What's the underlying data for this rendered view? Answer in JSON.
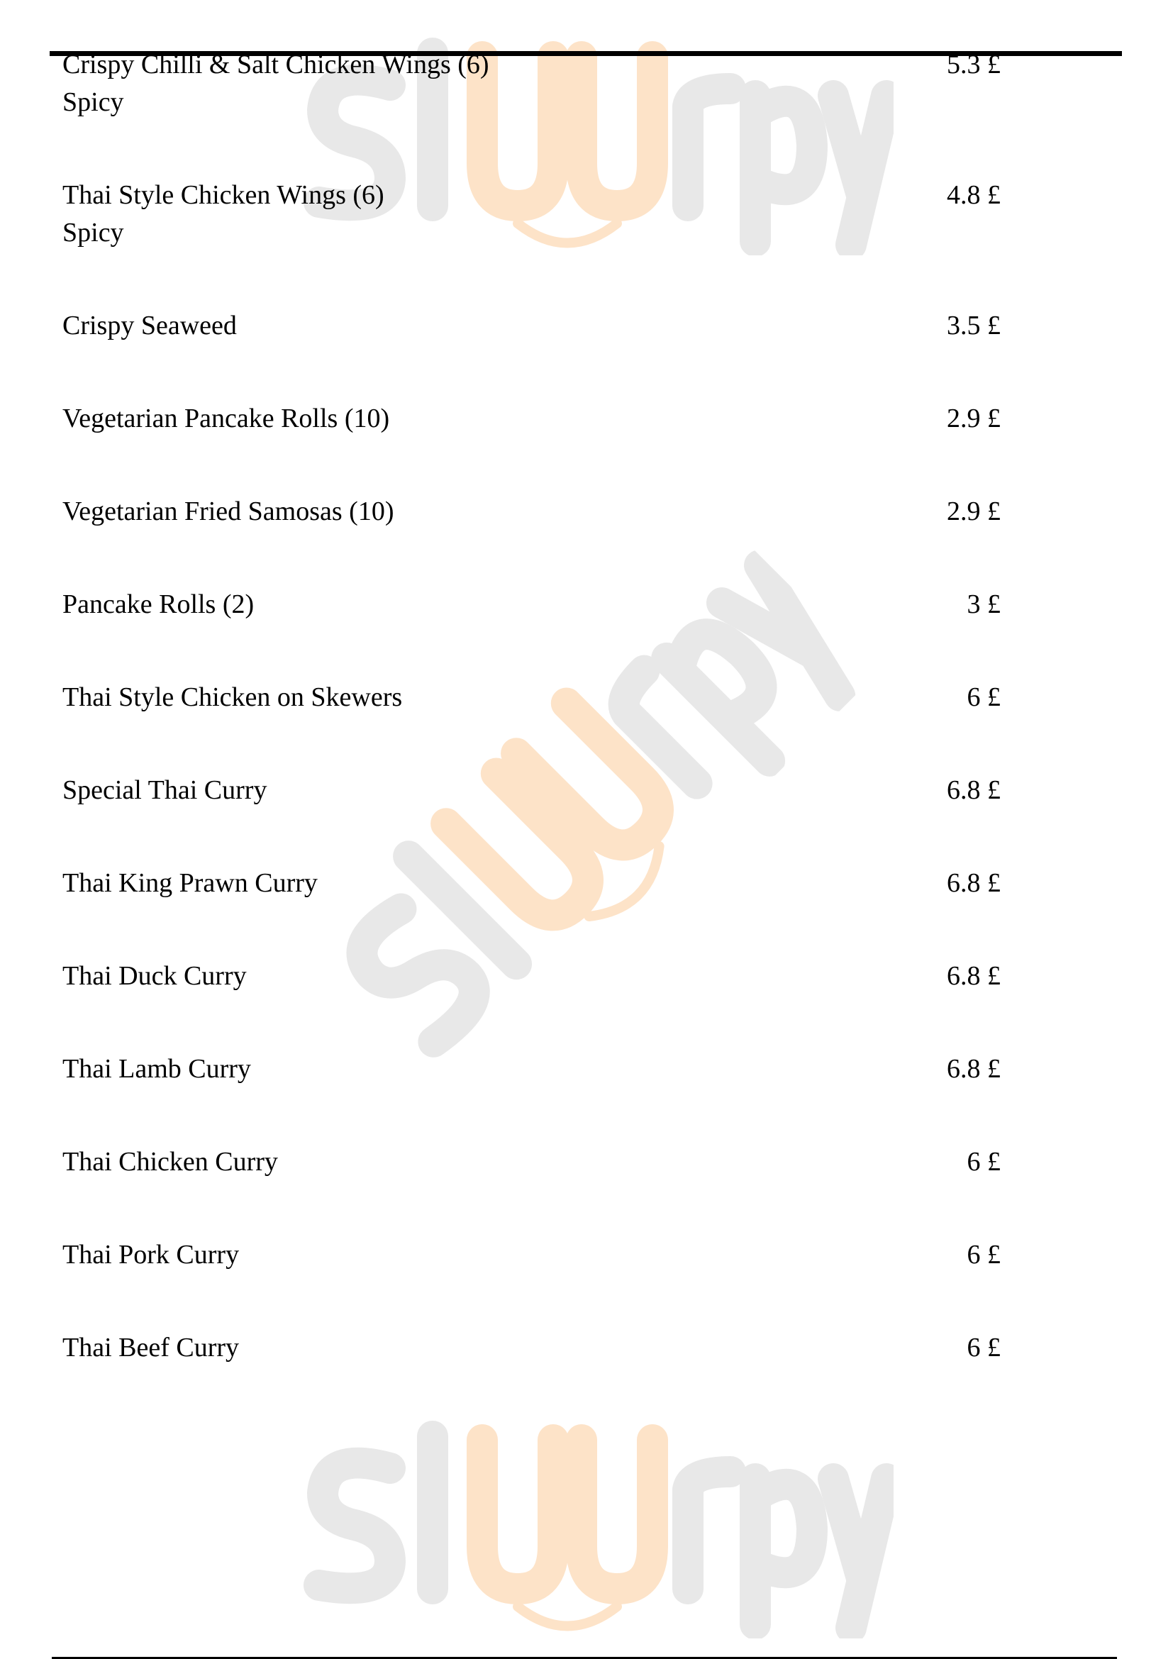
{
  "watermark": {
    "text": "slUrpy",
    "colors": {
      "gray": "#e6e6e6",
      "orange": "#fde3c8"
    }
  },
  "menu": {
    "items": [
      {
        "name": "Crispy Chilli & Salt Chicken Wings (6)",
        "note": "Spicy",
        "price": "5.3 £"
      },
      {
        "name": "Thai Style Chicken Wings (6)",
        "note": "Spicy",
        "price": "4.8 £"
      },
      {
        "name": "Crispy Seaweed",
        "price": "3.5 £"
      },
      {
        "name": "Vegetarian Pancake Rolls (10)",
        "price": "2.9 £"
      },
      {
        "name": "Vegetarian Fried Samosas (10)",
        "price": "2.9 £"
      },
      {
        "name": "Pancake Rolls (2)",
        "price": "3 £"
      },
      {
        "name": "Thai Style Chicken on Skewers",
        "price": "6 £"
      },
      {
        "name": "Special Thai Curry",
        "price": "6.8 £"
      },
      {
        "name": "Thai King Prawn Curry",
        "price": "6.8 £"
      },
      {
        "name": "Thai Duck Curry",
        "price": "6.8 £"
      },
      {
        "name": "Thai Lamb Curry",
        "price": "6.8 £"
      },
      {
        "name": "Thai Chicken Curry",
        "price": "6 £"
      },
      {
        "name": "Thai Pork Curry",
        "price": "6 £"
      },
      {
        "name": "Thai Beef Curry",
        "price": "6 £"
      }
    ]
  }
}
